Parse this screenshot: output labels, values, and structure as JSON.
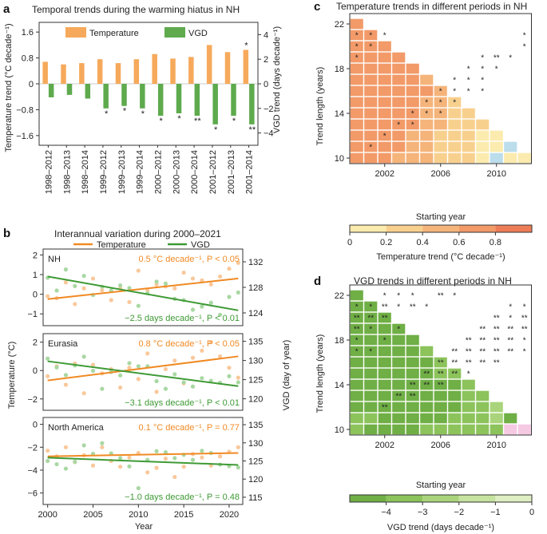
{
  "chart_data": [
    {
      "id": "a",
      "type": "bar",
      "panel_letter": "a",
      "title": "Temporal trends during the warming hiatus in NH",
      "categories": [
        "1998–2012",
        "1998–2013",
        "1998–2014",
        "1999–2012",
        "1999–2013",
        "1999–2014",
        "2000–2012",
        "2000–2013",
        "2000–2014",
        "2001–2012",
        "2001–2013",
        "2001–2014"
      ],
      "series": [
        {
          "name": "Temperature",
          "color": "#F6A95B",
          "axis": "left",
          "values": [
            0.68,
            0.6,
            0.64,
            0.76,
            0.64,
            0.76,
            0.92,
            0.78,
            0.83,
            1.2,
            0.98,
            1.05
          ],
          "sig": [
            "",
            "",
            "",
            "",
            "",
            "",
            "",
            "",
            "",
            "",
            "",
            "*"
          ]
        },
        {
          "name": "VGD",
          "color": "#5EAA4D",
          "axis": "right",
          "values": [
            -1.1,
            -0.9,
            -1.2,
            -2.0,
            -1.8,
            -2.0,
            -2.6,
            -2.4,
            -2.6,
            -3.3,
            -2.6,
            -3.3
          ],
          "sig": [
            "",
            "",
            "",
            "*",
            "*",
            "*",
            "*",
            "*",
            "**",
            "*",
            "*",
            "**"
          ]
        }
      ],
      "ylabel_left": "Temperature trend (°C decade⁻¹)",
      "ylabel_right": "VGD trend (days decade⁻¹)",
      "ylim_left": [
        -1.9,
        1.9
      ],
      "ylim_right": [
        -5,
        5
      ],
      "yticks_left": [
        "−1.6",
        "−0.8",
        "0",
        "0.8",
        "1.6"
      ],
      "yticks_right": [
        "−4",
        "−2",
        "0",
        "2",
        "4"
      ],
      "legend": [
        "Temperature",
        "VGD"
      ]
    },
    {
      "id": "b",
      "type": "scatter",
      "panel_letter": "b",
      "title": "Interannual variation during  2000–2021",
      "legend": [
        "Temperature",
        "VGD"
      ],
      "xlabel": "Year",
      "ylabel_left": "Temperature (°C)",
      "ylabel_right": "VGD (day of year)",
      "xticks": [
        "2000",
        "2005",
        "2010",
        "2015",
        "2020"
      ],
      "subplots": [
        {
          "name": "NH",
          "ylim_left": [
            -1.6,
            2.3
          ],
          "ylim_right": [
            122,
            134
          ],
          "yticks_left": [
            "−1",
            "0",
            "1",
            "2"
          ],
          "yticks_right": [
            "124",
            "128",
            "132"
          ],
          "temp_text": "0.5 °C decade⁻¹, P < 0.05",
          "vgd_text": "−2.5 days decade⁻¹, P < 0.01",
          "temp_points": [
            -0.1,
            -0.2,
            0.6,
            -0.5,
            0.3,
            0.8,
            0.2,
            -0.3,
            0.3,
            -0.4,
            1.2,
            0.2,
            0.5,
            0.4,
            0.3,
            1.1,
            0.8,
            0.7,
            0.5,
            0.9,
            1.3,
            1.6
          ],
          "vgd_points": [
            129.5,
            127.5,
            130.8,
            128.2,
            129.8,
            126.8,
            128.1,
            127.5,
            128.3,
            127.9,
            125.1,
            127.1,
            128.9,
            128.6,
            126.2,
            126.0,
            124.5,
            125.0,
            125.6,
            123.7,
            126.5,
            127.2
          ],
          "temp_trend": [
            -0.25,
            0.8
          ],
          "vgd_trend": [
            129.7,
            124.4
          ]
        },
        {
          "name": "Eurasia",
          "ylim_left": [
            -2.8,
            2.6
          ],
          "ylim_right": [
            117,
            137
          ],
          "yticks_left": [
            "−2",
            "0",
            "2"
          ],
          "yticks_right": [
            "120",
            "125",
            "130",
            "135"
          ],
          "temp_text": "0.8 °C decade⁻¹, P < 0.05",
          "vgd_text": "−3.1 days decade⁻¹, P < 0.01",
          "temp_points": [
            -0.4,
            0.3,
            -1.0,
            0.5,
            -1.6,
            0.4,
            -0.2,
            0.1,
            -1.2,
            0.2,
            -0.6,
            1.2,
            -1.5,
            0.1,
            0.7,
            -0.9,
            0.9,
            1.4,
            2.0,
            1.0,
            0.2,
            -0.5
          ],
          "vgd_points": [
            130.5,
            128.2,
            126.2,
            128.7,
            131.0,
            127.3,
            122.6,
            127.0,
            126.1,
            129.3,
            128.5,
            128.5,
            124.6,
            122.6,
            126.4,
            124.3,
            123.2,
            125.4,
            124.7,
            124.2,
            125.9,
            124.3
          ],
          "temp_trend": [
            -0.7,
            1.0
          ],
          "vgd_trend": [
            129.8,
            123.3
          ]
        },
        {
          "name": "North America",
          "ylim_left": [
            -7,
            0.6
          ],
          "ylim_right": [
            113,
            137
          ],
          "yticks_left": [
            "−6",
            "−4",
            "−2",
            "0"
          ],
          "yticks_right": [
            "115",
            "120",
            "125",
            "130",
            "135"
          ],
          "temp_text": "0.1 °C decade⁻¹, P = 0.77",
          "vgd_text": "−1.0 days decade⁻¹, P = 0.48",
          "temp_points": [
            -2.3,
            -2.8,
            -2.0,
            -3.3,
            -2.7,
            -3.6,
            -2.0,
            -3.2,
            -3.7,
            -2.9,
            -2.5,
            -4.2,
            -3.8,
            -3.0,
            -4.6,
            -3.7,
            -2.6,
            -2.9,
            -3.6,
            -2.8,
            -2.4,
            -2.0
          ],
          "vgd_points": [
            125.0,
            124.1,
            122.9,
            124.8,
            129.3,
            127.0,
            129.9,
            127.1,
            125.8,
            123.5,
            117.5,
            125.3,
            127.7,
            127.4,
            125.8,
            126.7,
            125.3,
            127.8,
            127.2,
            124.0,
            123.6,
            123.2
          ],
          "temp_trend": [
            -2.8,
            -2.5
          ],
          "vgd_trend": [
            125.9,
            123.9
          ]
        }
      ],
      "colors": {
        "temperature": "#F08A24",
        "temperature_points": "#F9C89B",
        "vgd": "#3E9A35",
        "vgd_points": "#A9D8A3"
      }
    },
    {
      "id": "c",
      "type": "heatmap",
      "panel_letter": "c",
      "title": "Temperature trends in different periods in NH",
      "xlabel": "Starting year",
      "ylabel": "Trend length (years)",
      "xticks": [
        "2002",
        "2006",
        "2010"
      ],
      "yticks": [
        "10",
        "14",
        "18",
        "22"
      ],
      "colorbar_label": "Temperature trend (°C decade⁻¹)",
      "colorbar_ticks": [
        "0",
        "0.2",
        "0.4",
        "0.6",
        "0.8"
      ],
      "colorbar_colors": [
        "#FBEBAE",
        "#F8D08E",
        "#F5B47A",
        "#F29A68",
        "#EE7D57"
      ],
      "negative_color": "#BBDDEC",
      "start_years_first": 2000,
      "lengths_first": 10,
      "class_rows": [
        "4443332221011",
        "444433222110",
        "44443322211",
        "4444433222",
        "444443322",
        "44444332",
        "4444443",
        "444443",
        "44444",
        "4444",
        "444",
        "44",
        "4"
      ],
      "stars": [
        "",
        "",
        "",
        "",
        "",
        "",
        "",
        "",
        "",
        "",
        "",
        "",
        "",
        "",
        "",
        "",
        "",
        "",
        "",
        "",
        "",
        "",
        "",
        "",
        "",
        "",
        "*",
        "*",
        "*",
        "",
        "",
        "",
        "",
        "",
        "",
        "",
        "",
        "",
        "*",
        "*",
        "*",
        "",
        "",
        "",
        "",
        "",
        "",
        "",
        "",
        "",
        "",
        "*",
        "*",
        "",
        "",
        "",
        "",
        "",
        "",
        "",
        "",
        "*",
        "**",
        "*",
        "",
        "",
        "",
        "",
        "",
        "",
        "",
        "",
        "",
        "*",
        "*",
        "*",
        "",
        "",
        "",
        "",
        "",
        "",
        "",
        "",
        "",
        "*",
        "*",
        "*",
        "",
        "",
        "",
        "",
        "",
        "",
        "",
        "",
        "",
        "*",
        "*",
        "*",
        "*",
        "",
        "",
        "",
        "",
        "",
        "",
        "",
        "",
        "*",
        "*",
        "*",
        "",
        "",
        "",
        "",
        "",
        "",
        "",
        "",
        "",
        "*",
        "*",
        "*",
        "",
        "",
        "",
        "",
        "",
        "",
        "",
        "",
        "",
        "*",
        "*",
        "",
        "",
        "",
        "",
        "",
        "",
        "",
        "",
        "",
        "",
        "*",
        "",
        "",
        "",
        "",
        "",
        "",
        "",
        "",
        "",
        "",
        "",
        "*",
        "",
        "",
        "",
        "",
        "",
        "",
        "",
        "",
        "",
        "",
        ""
      ]
    },
    {
      "id": "d",
      "type": "heatmap",
      "panel_letter": "d",
      "title": "VGD trends in different periods in NH",
      "xlabel": "Starting year",
      "ylabel": "Trend length (years)",
      "xticks": [
        "2002",
        "2006",
        "2010"
      ],
      "yticks": [
        "10",
        "14",
        "18",
        "22"
      ],
      "colorbar_label": "VGD trend (days decade⁻¹)",
      "colorbar_ticks": [
        "−4",
        "−3",
        "−2",
        "−1",
        "0"
      ],
      "colorbar_colors": [
        "#6FAF45",
        "#8CC35B",
        "#A9D47B",
        "#C6E39F",
        "#DFEFC3"
      ],
      "positive_color": "#F6C9E3",
      "start_years_first": 2000,
      "lengths_first": 10,
      "class_rows": [
        "2111122222250",
        "221111122231",
        "11111111223",
        "1111111122",
        "111111112",
        "11111122",
        "1111112",
        "111112",
        "11111",
        "1111",
        "111",
        "11",
        "1"
      ],
      "stars": [
        "",
        "",
        "*",
        "*",
        "",
        "",
        "*",
        "*",
        "*",
        "",
        "",
        "",
        "",
        "",
        "",
        "*",
        "*",
        "*",
        "",
        "**",
        "*",
        "",
        "",
        "",
        "",
        "",
        "*",
        "*",
        "**",
        "*",
        "**",
        "*",
        "",
        "",
        "",
        "",
        "",
        "*",
        "*",
        "**",
        "**",
        "**",
        "",
        "",
        "",
        "",
        "",
        "",
        "",
        "**",
        "*",
        "**",
        "**",
        "*",
        "",
        "*",
        "",
        "",
        "",
        "",
        "",
        "**",
        "**",
        "**",
        "**",
        "*",
        "",
        "*",
        "",
        "",
        "",
        "",
        "",
        "**",
        "**",
        "**",
        "**",
        "*",
        "*",
        "*",
        "",
        "",
        "",
        "",
        "",
        "**",
        "**",
        "**",
        "**",
        "**",
        "*",
        "",
        "",
        "",
        "",
        "",
        "",
        "**",
        "**",
        "**",
        "**",
        "**",
        "",
        "",
        "",
        "",
        "",
        "",
        "",
        "**",
        "**",
        "**",
        "*",
        "",
        "",
        "",
        "",
        "",
        "",
        "",
        "",
        "**",
        "**",
        "**",
        "",
        "",
        "",
        "",
        "",
        "",
        "",
        "",
        "",
        "**",
        "**",
        "",
        "",
        "",
        "",
        "",
        "",
        "",
        "",
        "",
        "",
        "**",
        "",
        "",
        "",
        "",
        "",
        "",
        "",
        "",
        "",
        "",
        ""
      ]
    }
  ]
}
